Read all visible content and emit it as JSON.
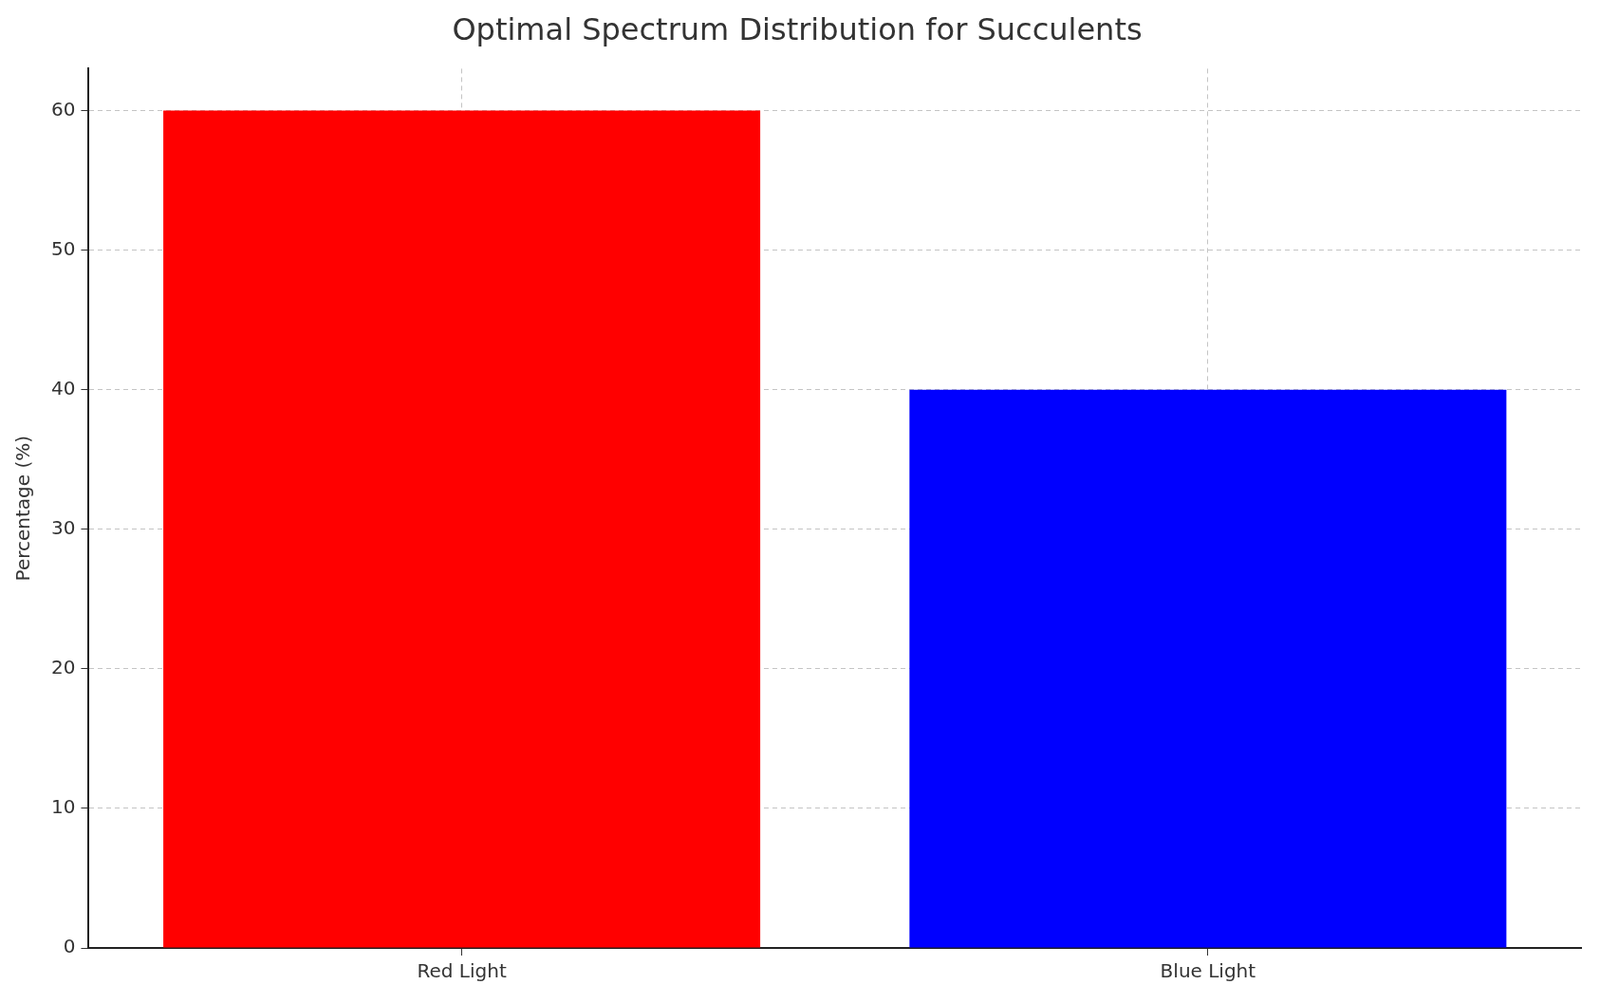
{
  "chart_data": {
    "type": "bar",
    "title": "Optimal Spectrum Distribution for Succulents",
    "categories": [
      "Red Light",
      "Blue Light"
    ],
    "values": [
      60,
      40
    ],
    "colors": [
      "#ff0000",
      "#0000ff"
    ],
    "ylabel": "Percentage (%)",
    "ylim": [
      0,
      63
    ],
    "yticks": [
      0,
      10,
      20,
      30,
      40,
      50,
      60
    ],
    "grid": true
  }
}
